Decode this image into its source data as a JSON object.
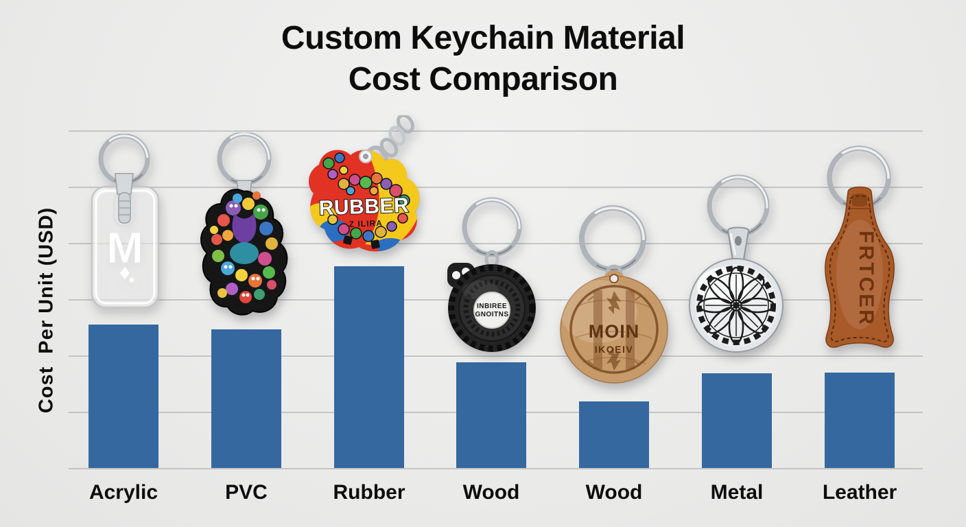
{
  "title": {
    "line1": "Custom Keychain Material",
    "line2": "Cost Comparison"
  },
  "y_axis_label": "Cost  Per Unit (USD)",
  "chart_data": {
    "type": "bar",
    "title": "Custom Keychain Material Cost Comparison",
    "xlabel": "",
    "ylabel": "Cost Per Unit (USD)",
    "categories": [
      "Acrylic",
      "PVC",
      "Rubber",
      "Wood",
      "Wood",
      "Metal",
      "Leather"
    ],
    "values": [
      2.55,
      2.46,
      3.59,
      1.88,
      1.18,
      1.68,
      1.7
    ],
    "value_units": "estimated USD; y-axis has unlabeled gridlines, 1 unit per gridline interval",
    "ylim": [
      0,
      6
    ],
    "grid": true,
    "gridline_count": 7,
    "legend": false,
    "bar_color": "#35689F"
  },
  "colors": {
    "background": "#ECECEB",
    "gridline": "#C8C8C8",
    "bar": "#35689F",
    "text": "#0D0D0D"
  },
  "keychains": [
    {
      "name": "acrylic-keychain",
      "label": "Acrylic",
      "monogram": "M",
      "description": "clear acrylic rectangle tag with silver split ring and white M monogram"
    },
    {
      "name": "pvc-keychain",
      "label": "PVC",
      "description": "colorful doodle-art PVC charm, irregular shape, silver split ring"
    },
    {
      "name": "rubber-keychain",
      "label": "Rubber",
      "text_main": "RUBBER",
      "text_sub": "Z ILIRA",
      "description": "red/yellow/blue rubber blob charm with silver chain and eyelet"
    },
    {
      "name": "tire-keychain",
      "label": "Wood",
      "text_line1": "INBIREE",
      "text_line2": "GNOITNS",
      "description": "black rubber tire charm, white hub with printed text, silver split ring"
    },
    {
      "name": "wood-keychain",
      "label": "Wood",
      "text_main": "MOIN",
      "text_sub": "IKOEIV",
      "description": "round engraved wooden disc keychain with silver split ring"
    },
    {
      "name": "metal-keychain",
      "label": "Metal",
      "description": "silver medallion keychain with engraved black mandala pattern and bail"
    },
    {
      "name": "leather-keychain",
      "label": "Leather",
      "text_main": "FRTCER",
      "description": "brown stitched leather fob with vertical embossed text and silver split ring"
    }
  ]
}
